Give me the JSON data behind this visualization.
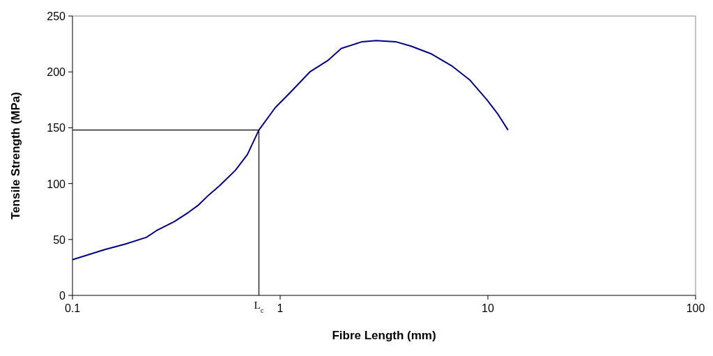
{
  "chart_data": {
    "type": "line",
    "xlabel": "Fibre Length (mm)",
    "ylabel": "Tensile Strength (MPa)",
    "log": "x",
    "xlim": [
      0.1,
      100
    ],
    "xticks": [
      0.1,
      1,
      10,
      100
    ],
    "ylim": [
      0,
      250
    ],
    "yticks": [
      0,
      50,
      100,
      150,
      200,
      250
    ],
    "grid": false,
    "marker": "none",
    "series": [
      {
        "color": "#000080",
        "x": [
          0.1,
          0.143,
          0.18,
          0.227,
          0.254,
          0.309,
          0.36,
          0.405,
          0.454,
          0.51,
          0.609,
          0.695,
          0.79,
          0.947,
          1.11,
          1.39,
          1.69,
          1.97,
          2.48,
          2.9,
          3.6,
          4.27,
          5.36,
          6.75,
          8.16,
          9.9,
          11.1,
          12.5
        ],
        "values": [
          32,
          41,
          46,
          52,
          58,
          66,
          74,
          81,
          90,
          98,
          112,
          126,
          148,
          168,
          181,
          200,
          210,
          221,
          227,
          228,
          227,
          223,
          216,
          205,
          193,
          175,
          163,
          148
        ]
      },
      {
        "color": "#000000",
        "x": [
          0.1,
          0.79,
          0.79
        ],
        "values": [
          148,
          148,
          0
        ]
      }
    ],
    "annotations": [
      {
        "text": "L$_{c}$",
        "x": 0.79,
        "y": 0
      }
    ]
  }
}
